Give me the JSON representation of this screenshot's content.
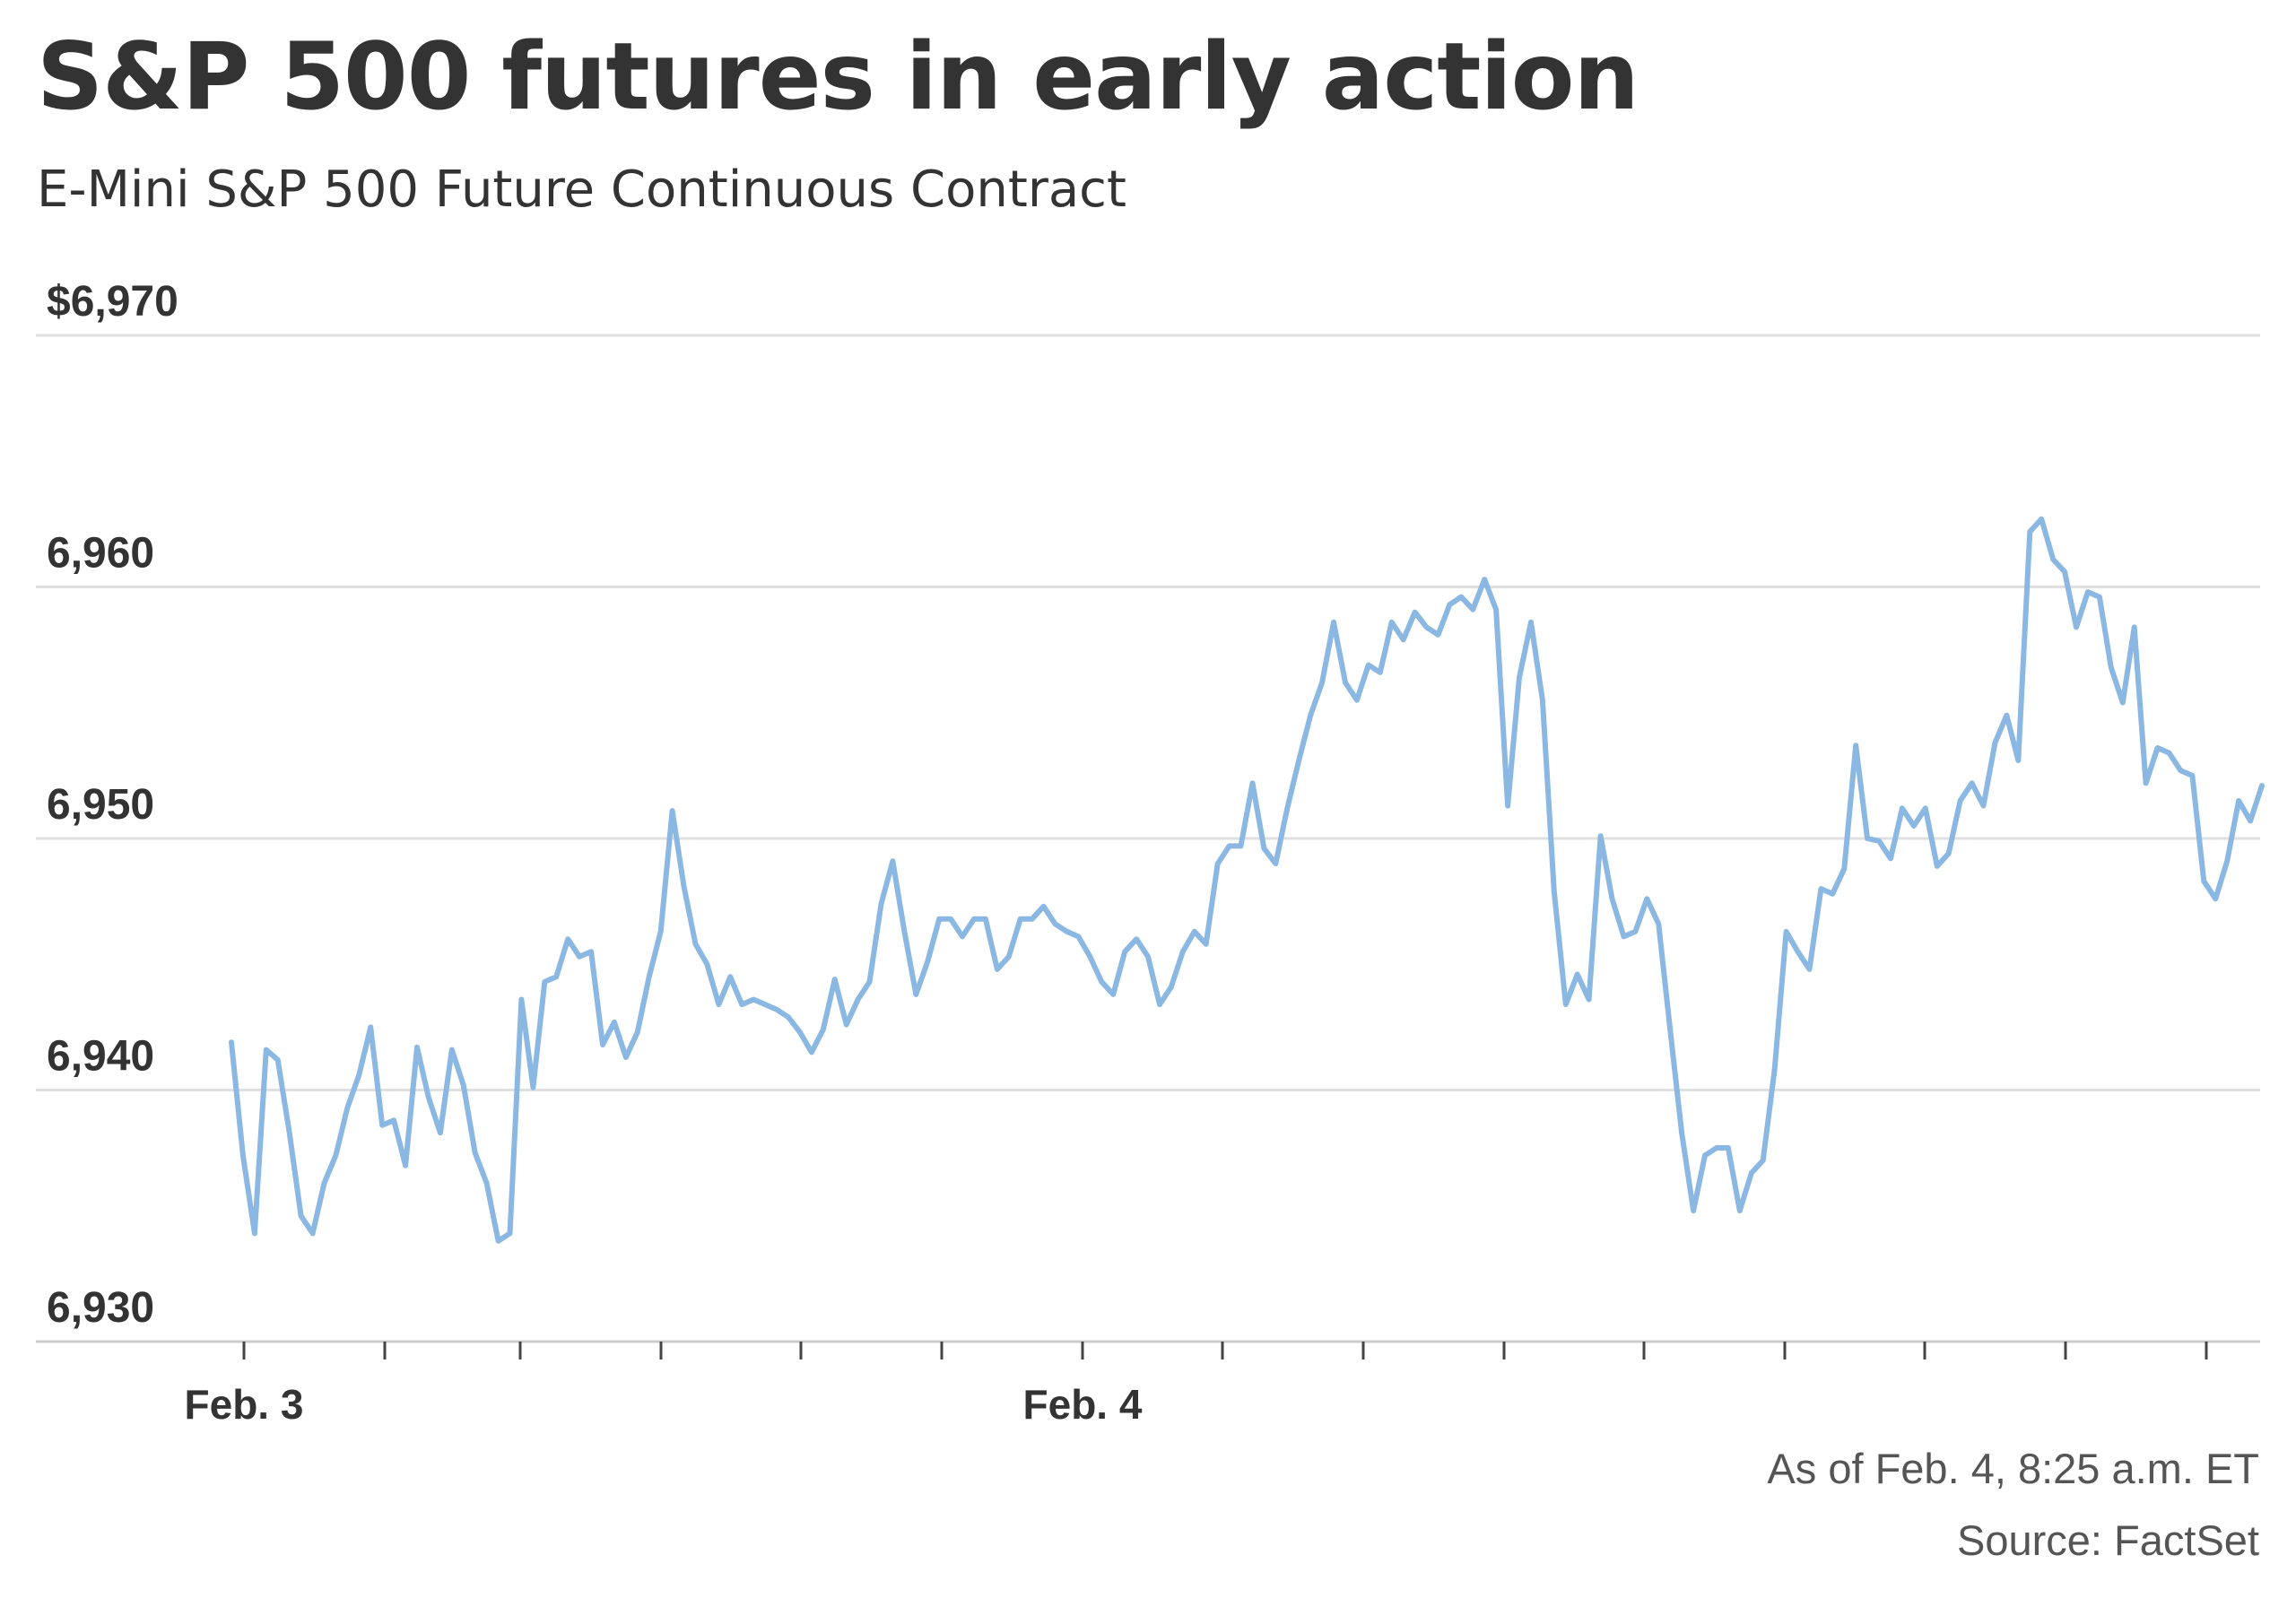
{
  "header": {
    "title": "S&P 500 futures in early action",
    "subtitle": "E-Mini S&P 500 Future Continuous Contract"
  },
  "footer": {
    "as_of": "As of Feb. 4, 8:25 a.m. ET",
    "source": "Source: FactSet"
  },
  "colors": {
    "line": "#8ab8e2",
    "grid": "#e0e0e0",
    "axis": "#cccccc",
    "text": "#333333"
  },
  "chart_data": {
    "type": "line",
    "title": "S&P 500 futures in early action",
    "subtitle": "E-Mini S&P 500 Future Continuous Contract",
    "xlabel": "",
    "ylabel": "",
    "x_tick_labels": [
      "Feb. 3",
      "Feb. 4"
    ],
    "y_ticks": [
      {
        "value": 6930,
        "label": "6,930"
      },
      {
        "value": 6940,
        "label": "6,940"
      },
      {
        "value": 6950,
        "label": "6,950"
      },
      {
        "value": 6960,
        "label": "6,960"
      },
      {
        "value": 6970,
        "label": "$6,970"
      }
    ],
    "ylim": [
      6930,
      6970
    ],
    "grid": true,
    "series": [
      {
        "values": [
          6941.9,
          6937.4,
          6934.3,
          6941.6,
          6941.2,
          6938.3,
          6935.0,
          6934.3,
          6936.3,
          6937.4,
          6939.3,
          6940.6,
          6942.5,
          6938.6,
          6938.8,
          6937.0,
          6941.7,
          6939.7,
          6938.3,
          6941.6,
          6940.2,
          6937.5,
          6936.3,
          6934.0,
          6934.3,
          6943.6,
          6940.1,
          6944.3,
          6944.5,
          6946.0,
          6945.3,
          6945.5,
          6941.8,
          6942.7,
          6941.3,
          6942.3,
          6944.5,
          6946.3,
          6951.1,
          6948.1,
          6945.8,
          6945.0,
          6943.4,
          6944.5,
          6943.4,
          6943.6,
          6943.4,
          6943.2,
          6942.9,
          6942.3,
          6941.5,
          6942.4,
          6944.4,
          6942.6,
          6943.6,
          6944.3,
          6947.4,
          6949.1,
          6946.3,
          6943.8,
          6945.1,
          6946.8,
          6946.8,
          6946.1,
          6946.8,
          6946.8,
          6944.8,
          6945.3,
          6946.8,
          6946.8,
          6947.3,
          6946.6,
          6946.3,
          6946.1,
          6945.3,
          6944.3,
          6943.8,
          6945.5,
          6946.0,
          6945.3,
          6943.4,
          6944.1,
          6945.5,
          6946.3,
          6945.8,
          6949.0,
          6949.7,
          6949.7,
          6952.2,
          6949.6,
          6949.0,
          6951.2,
          6953.1,
          6954.9,
          6956.2,
          6958.6,
          6956.2,
          6955.5,
          6956.9,
          6956.6,
          6958.6,
          6957.9,
          6959.0,
          6958.4,
          6958.1,
          6959.3,
          6959.6,
          6959.1,
          6960.3,
          6959.1,
          6951.3,
          6956.4,
          6958.6,
          6955.5,
          6947.9,
          6943.4,
          6944.6,
          6943.6,
          6950.1,
          6947.6,
          6946.1,
          6946.3,
          6947.6,
          6946.6,
          6942.4,
          6938.3,
          6935.2,
          6937.4,
          6937.7,
          6937.7,
          6935.2,
          6936.7,
          6937.2,
          6940.8,
          6946.3,
          6945.5,
          6944.8,
          6948.0,
          6947.8,
          6948.8,
          6953.7,
          6950.0,
          6949.9,
          6949.2,
          6951.2,
          6950.5,
          6951.2,
          6948.9,
          6949.4,
          6951.5,
          6952.2,
          6951.3,
          6953.8,
          6954.9,
          6953.1,
          6962.2,
          6962.7,
          6961.1,
          6960.6,
          6958.4,
          6959.8,
          6959.6,
          6956.8,
          6955.4,
          6958.4,
          6952.2,
          6953.6,
          6953.4,
          6952.7,
          6952.5,
          6948.3,
          6947.6,
          6949.1,
          6951.5,
          6950.7,
          6952.1
        ]
      }
    ]
  }
}
